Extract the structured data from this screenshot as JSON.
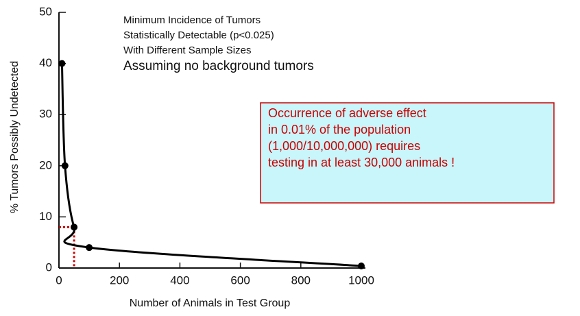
{
  "chart_data": {
    "type": "line",
    "title_lines": [
      "Minimum Incidence of Tumors",
      "Statistically Detectable (p<0.025)",
      "With Different Sample Sizes"
    ],
    "subtitle": "Assuming no background tumors",
    "x_label": "Number of Animals in Test Group",
    "y_label": "% Tumors Possibly Undetected",
    "x": [
      10,
      20,
      50,
      100,
      1000
    ],
    "series": [
      {
        "color": "#000000",
        "values": [
          40,
          20,
          8,
          4,
          0.4
        ]
      }
    ],
    "xlim": [
      0,
      1000
    ],
    "ylim": [
      0,
      50
    ],
    "xticks": [
      0,
      200,
      400,
      600,
      800,
      1000
    ],
    "yticks": [
      0,
      10,
      20,
      30,
      40,
      50
    ],
    "highlight": {
      "x_index": 2,
      "color": "#cc0000"
    },
    "annotation": {
      "lines": [
        "Occurrence of adverse effect",
        "in 0.01% of the population",
        "(1,000/10,000,000) requires",
        "testing in at least 30,000 animals !"
      ],
      "fill": "#c8f6fb",
      "border": "#cc0000",
      "text_color": "#cc0000"
    }
  }
}
